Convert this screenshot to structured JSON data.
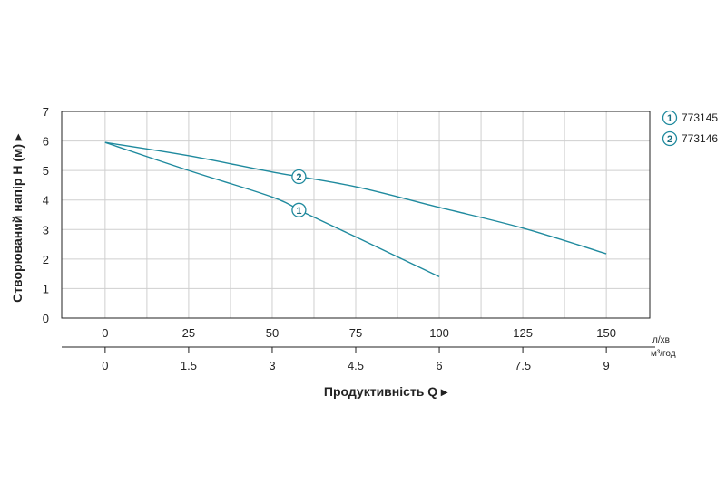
{
  "chart_data": {
    "type": "line",
    "ylabel": "Створюваний напір H (м) ▸",
    "xlabel": "Продуктивність  Q ▸",
    "ylim": [
      0,
      7
    ],
    "xlim": [
      -13,
      163
    ],
    "y_ticks": [
      "0",
      "1",
      "2",
      "3",
      "4",
      "5",
      "6",
      "7"
    ],
    "x_ticks_primary": [
      "0",
      "25",
      "50",
      "75",
      "100",
      "125",
      "150"
    ],
    "x_ticks_secondary": [
      "0",
      "1.5",
      "3",
      "4.5",
      "6",
      "7.5",
      "9"
    ],
    "unit_primary": "л/хв",
    "unit_secondary": "м³/год",
    "grid": true,
    "legend_position": "right",
    "line_color": "#1f8a9e",
    "series": [
      {
        "name": "773145",
        "marker": "1",
        "x": [
          0,
          25,
          50,
          60,
          75,
          100
        ],
        "y": [
          5.95,
          5.0,
          4.1,
          3.55,
          2.75,
          1.4
        ],
        "marker_at": 58
      },
      {
        "name": "773146",
        "marker": "2",
        "x": [
          0,
          25,
          50,
          75,
          100,
          125,
          150
        ],
        "y": [
          5.95,
          5.5,
          4.95,
          4.45,
          3.75,
          3.05,
          2.18
        ],
        "marker_at": 58
      }
    ]
  }
}
